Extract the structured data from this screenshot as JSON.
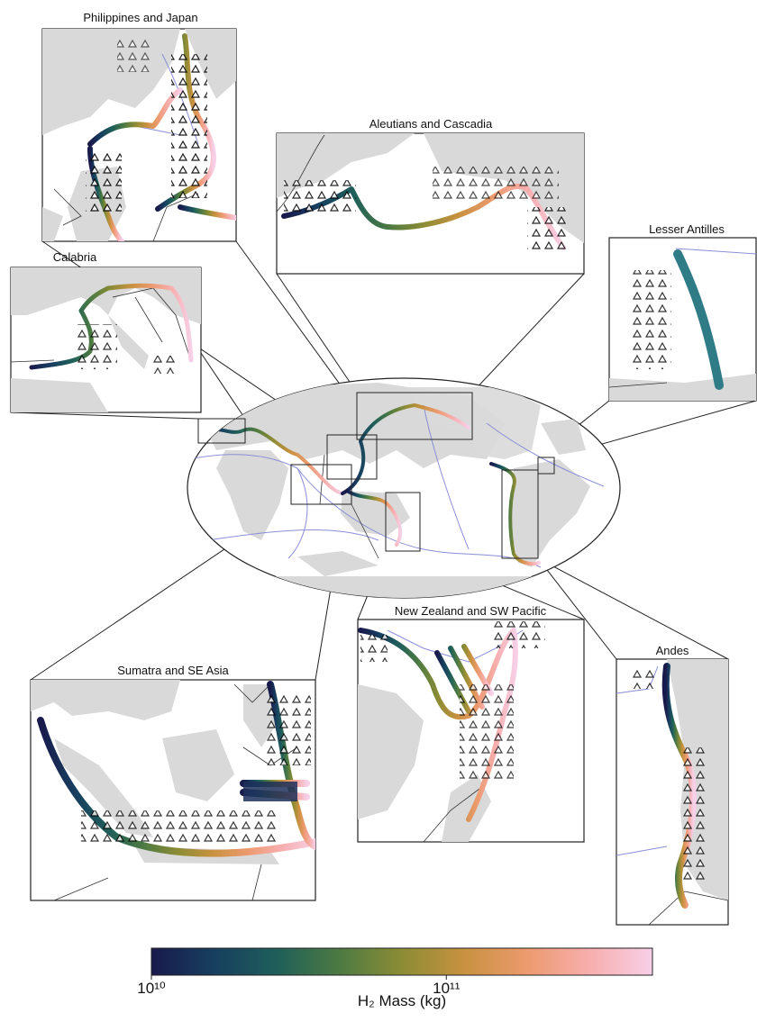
{
  "insets": [
    {
      "title": "Philippines and Japan"
    },
    {
      "title": "Aleutians and Cascadia"
    },
    {
      "title": "Lesser Antilles"
    },
    {
      "title": "Calabria"
    },
    {
      "title": "Sumatra and SE Asia"
    },
    {
      "title": "New Zealand and SW Pacific"
    },
    {
      "title": "Andes"
    }
  ],
  "colorbar": {
    "label": "H₂ Mass (kg)",
    "scale": "log",
    "clim": [
      10000000000,
      500000000000
    ],
    "ticks": [
      {
        "value": 10000000000,
        "label": "10¹⁰"
      },
      {
        "value": 100000000000,
        "label": "10¹¹"
      }
    ],
    "colors": [
      "#191a4c",
      "#173f5f",
      "#1f5f5a",
      "#4d7a42",
      "#8c8c35",
      "#c8913f",
      "#ec9a6e",
      "#f7aeae",
      "#f7cfe6"
    ]
  }
}
